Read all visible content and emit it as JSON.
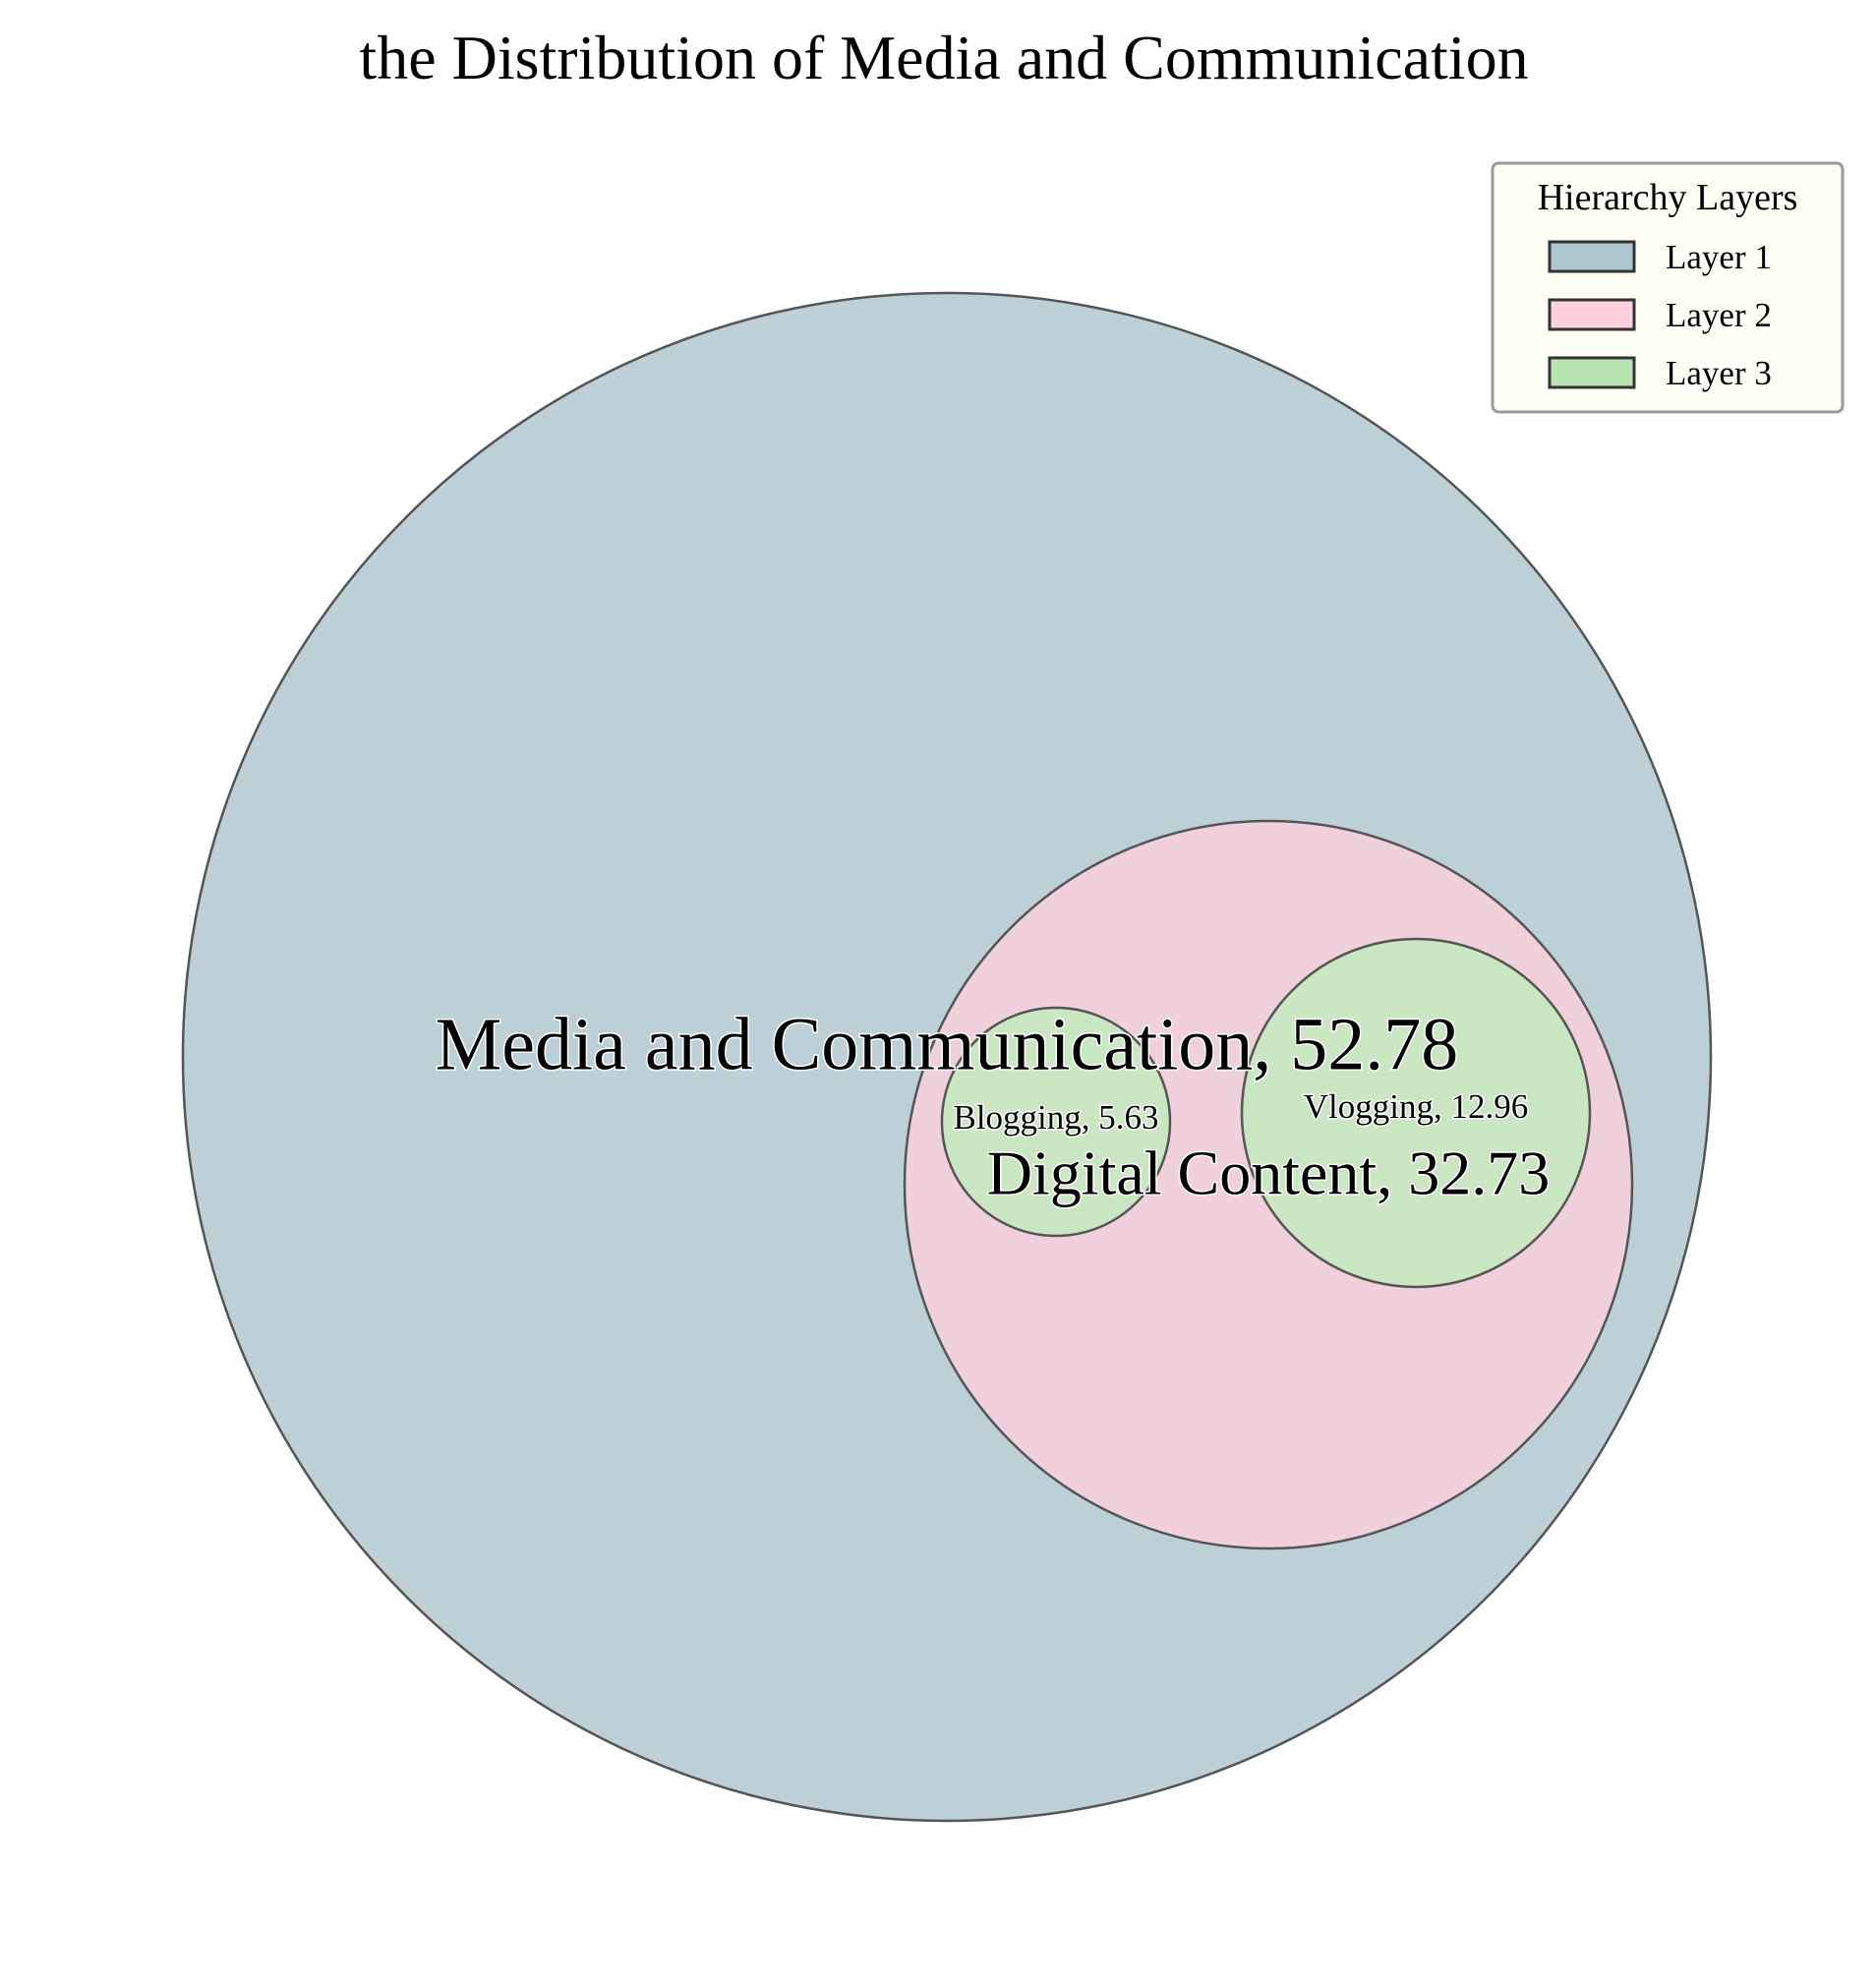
{
  "chart_data": {
    "type": "circle-packing",
    "title": "the Distribution of Media and Communication",
    "nodes": [
      {
        "id": "media",
        "name": "Media and Communication",
        "value": 52.78,
        "layer": 1,
        "label": "Media and Communication, 52.78"
      },
      {
        "id": "digital",
        "name": "Digital Content",
        "value": 32.73,
        "layer": 2,
        "parent": "media",
        "label": "Digital Content, 32.73"
      },
      {
        "id": "blogging",
        "name": "Blogging",
        "value": 5.63,
        "layer": 3,
        "parent": "digital",
        "label": "Blogging, 5.63"
      },
      {
        "id": "vlogging",
        "name": "Vlogging",
        "value": 12.96,
        "layer": 3,
        "parent": "digital",
        "label": "Vlogging, 12.96"
      }
    ],
    "legend": {
      "title": "Hierarchy Layers",
      "position": "top-right",
      "entries": [
        {
          "label": "Layer 1",
          "color": "#AEC6CF"
        },
        {
          "label": "Layer 2",
          "color": "#FFD1DC"
        },
        {
          "label": "Layer 3",
          "color": "#B7E4B0"
        }
      ]
    },
    "colors": {
      "layer1": "#BDD0D8",
      "layer2": "#F0D0DB",
      "layer3": "#CAE6C2",
      "edge": "#555555",
      "legend_bg": "#FFFFF5"
    }
  }
}
